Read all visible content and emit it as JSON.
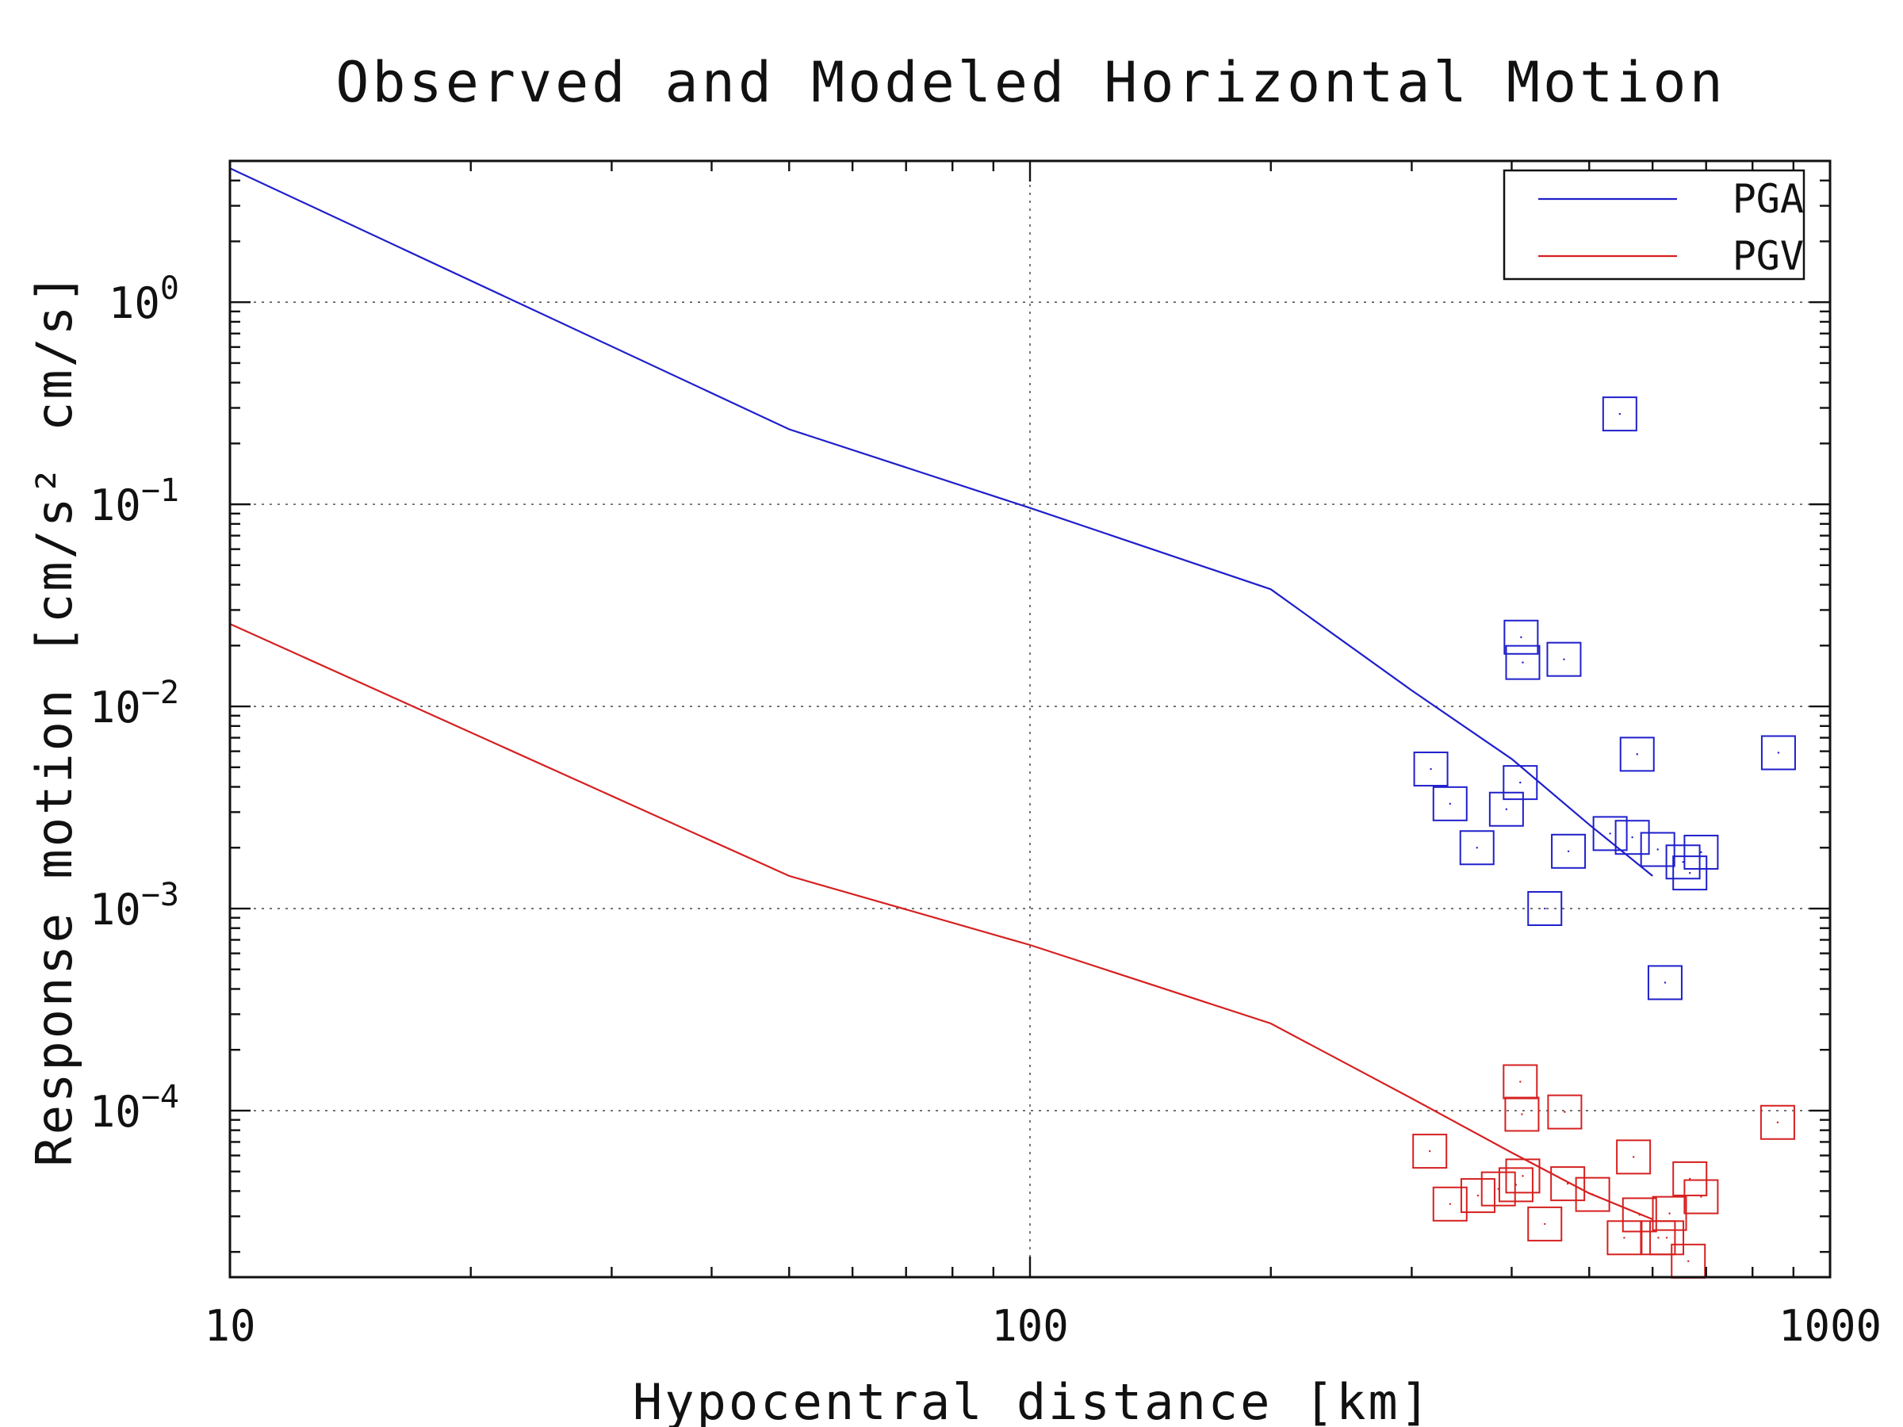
{
  "chart_data": {
    "type": "scatter",
    "title": "Observed and Modeled Horizontal Motion",
    "xlabel": "Hypocentral distance [km]",
    "ylabel": "Response motion [cm/s² cm/s]",
    "x_scale": "log",
    "y_scale": "log",
    "xlim": [
      10,
      1000
    ],
    "ylim": [
      1.5e-05,
      5
    ],
    "x_ticks": [
      10,
      100,
      1000
    ],
    "x_tick_labels": [
      "10",
      "100",
      "1000"
    ],
    "y_ticks": [
      0.0001,
      0.001,
      0.01,
      0.1,
      1
    ],
    "y_tick_labels": [
      {
        "base": "10",
        "exp": "−4"
      },
      {
        "base": "10",
        "exp": "−3"
      },
      {
        "base": "10",
        "exp": "−2"
      },
      {
        "base": "10",
        "exp": "−1"
      },
      {
        "base": "10",
        "exp": "0"
      }
    ],
    "grid": true,
    "legend_position": "top-right",
    "series": [
      {
        "name": "PGA",
        "color": "#1f1fcc",
        "model_line": [
          [
            10,
            4.6
          ],
          [
            50,
            0.235
          ],
          [
            100,
            0.096
          ],
          [
            200,
            0.038
          ],
          [
            300,
            0.012
          ],
          [
            400,
            0.0055
          ],
          [
            500,
            0.0026
          ],
          [
            600,
            0.00145
          ]
        ],
        "observed": [
          [
            317,
            0.0049
          ],
          [
            335,
            0.0033
          ],
          [
            362,
            0.002
          ],
          [
            394,
            0.0031
          ],
          [
            410,
            0.0042
          ],
          [
            411,
            0.022
          ],
          [
            413,
            0.0165
          ],
          [
            440,
            0.001
          ],
          [
            465,
            0.0171
          ],
          [
            471,
            0.00192
          ],
          [
            531,
            0.00235
          ],
          [
            546,
            0.28
          ],
          [
            566,
            0.00225
          ],
          [
            574,
            0.0058
          ],
          [
            609,
            0.00196
          ],
          [
            622,
            0.00043
          ],
          [
            655,
            0.0017
          ],
          [
            668,
            0.0015
          ],
          [
            690,
            0.0019
          ],
          [
            862,
            0.0059
          ]
        ]
      },
      {
        "name": "PGV",
        "color": "#d62020",
        "model_line": [
          [
            10,
            0.0256
          ],
          [
            50,
            0.00145
          ],
          [
            100,
            0.00066
          ],
          [
            200,
            0.00027
          ],
          [
            300,
            0.000115
          ],
          [
            400,
            6.2e-05
          ],
          [
            500,
            3.9e-05
          ],
          [
            600,
            2.9e-05
          ]
        ],
        "observed": [
          [
            316,
            6.3e-05
          ],
          [
            335,
            3.45e-05
          ],
          [
            363,
            3.8e-05
          ],
          [
            385,
            4.1e-05
          ],
          [
            405,
            4.3e-05
          ],
          [
            410,
            0.000139
          ],
          [
            412,
            9.6e-05
          ],
          [
            413,
            4.75e-05
          ],
          [
            440,
            2.75e-05
          ],
          [
            466,
            9.85e-05
          ],
          [
            470,
            4.35e-05
          ],
          [
            505,
            3.85e-05
          ],
          [
            553,
            2.35e-05
          ],
          [
            568,
            5.9e-05
          ],
          [
            578,
            3.05e-05
          ],
          [
            610,
            2.35e-05
          ],
          [
            625,
            2.35e-05
          ],
          [
            630,
            3.1e-05
          ],
          [
            665,
            1.8e-05
          ],
          [
            668,
            4.6e-05
          ],
          [
            690,
            3.75e-05
          ],
          [
            860,
            8.75e-05
          ]
        ]
      }
    ]
  }
}
